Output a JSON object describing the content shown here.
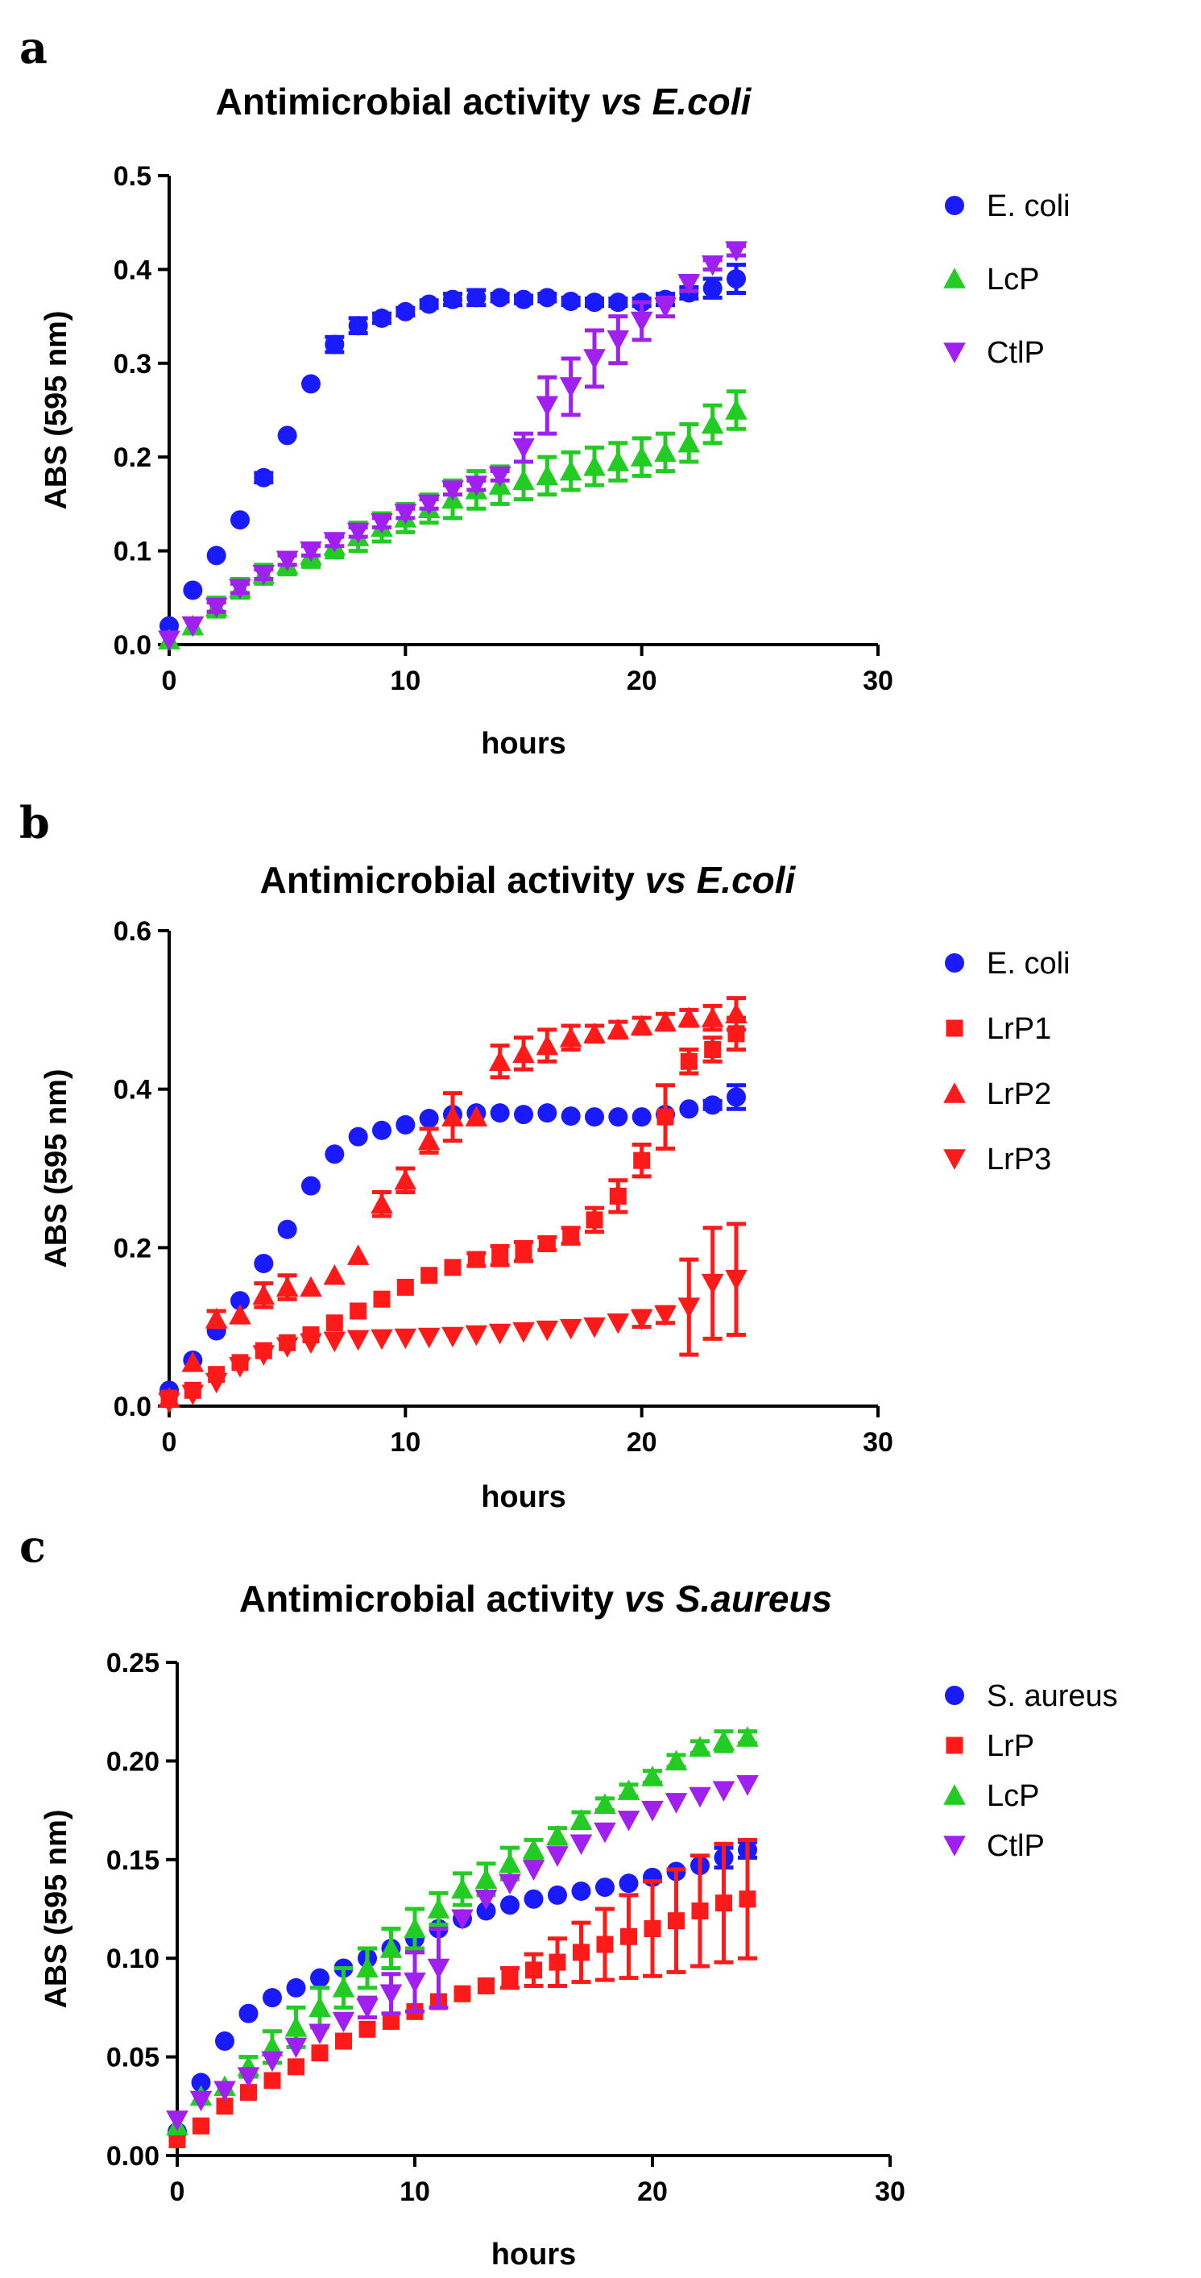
{
  "chart_data": [
    {
      "panel": "a",
      "type": "scatter",
      "title": "Antimicrobial activity ",
      "title_italic": "vs E.coli",
      "xlabel": "hours",
      "ylabel": "ABS (595 nm)",
      "xlim": [
        0,
        30
      ],
      "ylim": [
        0,
        0.5
      ],
      "xticks": [
        "0",
        "10",
        "20",
        "30"
      ],
      "yticks": [
        "0.0",
        "0.1",
        "0.2",
        "0.3",
        "0.4",
        "0.5"
      ],
      "legend_position": "right",
      "series": [
        {
          "name": "E. coli",
          "marker": "circle",
          "color": "#1a1aff",
          "x": [
            0,
            1,
            2,
            3,
            4,
            5,
            6,
            7,
            8,
            9,
            10,
            11,
            12,
            13,
            14,
            15,
            16,
            17,
            18,
            19,
            20,
            21,
            22,
            23,
            24
          ],
          "y": [
            0.02,
            0.058,
            0.095,
            0.133,
            0.178,
            0.223,
            0.278,
            0.32,
            0.34,
            0.348,
            0.355,
            0.363,
            0.368,
            0.37,
            0.37,
            0.368,
            0.37,
            0.366,
            0.365,
            0.365,
            0.365,
            0.368,
            0.375,
            0.38,
            0.39
          ],
          "err": [
            0,
            0,
            0,
            0,
            0.005,
            0,
            0,
            0.008,
            0.008,
            0.005,
            0.004,
            0.004,
            0.006,
            0.008,
            0.004,
            0.004,
            0.004,
            0.004,
            0.004,
            0.004,
            0.004,
            0.006,
            0.006,
            0.01,
            0.015
          ]
        },
        {
          "name": "LcP",
          "marker": "triangle-up",
          "color": "#22cc22",
          "x": [
            0,
            1,
            2,
            3,
            4,
            5,
            6,
            7,
            8,
            9,
            10,
            11,
            12,
            13,
            14,
            15,
            16,
            17,
            18,
            19,
            20,
            21,
            22,
            23,
            24
          ],
          "y": [
            0.005,
            0.02,
            0.04,
            0.06,
            0.075,
            0.085,
            0.095,
            0.105,
            0.115,
            0.125,
            0.135,
            0.145,
            0.155,
            0.165,
            0.17,
            0.175,
            0.18,
            0.185,
            0.19,
            0.195,
            0.2,
            0.205,
            0.215,
            0.235,
            0.25
          ],
          "err": [
            0,
            0,
            0.01,
            0.01,
            0.01,
            0.01,
            0.012,
            0.012,
            0.015,
            0.015,
            0.015,
            0.015,
            0.02,
            0.02,
            0.02,
            0.02,
            0.02,
            0.02,
            0.02,
            0.02,
            0.02,
            0.02,
            0.02,
            0.02,
            0.02
          ]
        },
        {
          "name": "CtlP",
          "marker": "triangle-down",
          "color": "#a020f0",
          "x": [
            0,
            1,
            2,
            3,
            4,
            5,
            6,
            7,
            8,
            9,
            10,
            11,
            12,
            13,
            14,
            15,
            16,
            17,
            18,
            19,
            20,
            21,
            22,
            23,
            24
          ],
          "y": [
            0.005,
            0.02,
            0.04,
            0.06,
            0.075,
            0.09,
            0.1,
            0.11,
            0.12,
            0.13,
            0.14,
            0.15,
            0.165,
            0.17,
            0.18,
            0.21,
            0.255,
            0.275,
            0.305,
            0.325,
            0.345,
            0.36,
            0.385,
            0.405,
            0.42
          ],
          "err": [
            0,
            0,
            0.005,
            0.005,
            0.005,
            0.005,
            0.005,
            0.005,
            0.005,
            0.005,
            0.005,
            0.005,
            0.005,
            0.005,
            0.005,
            0.015,
            0.03,
            0.03,
            0.03,
            0.025,
            0.02,
            0.01,
            0.008,
            0.005,
            0.005
          ]
        }
      ]
    },
    {
      "panel": "b",
      "type": "scatter",
      "title": "Antimicrobial activity ",
      "title_italic": "vs E.coli",
      "xlabel": "hours",
      "ylabel": "ABS (595 nm)",
      "xlim": [
        0,
        30
      ],
      "ylim": [
        0,
        0.6
      ],
      "xticks": [
        "0",
        "10",
        "20",
        "30"
      ],
      "yticks": [
        "0.0",
        "0.2",
        "0.4",
        "0.6"
      ],
      "legend_position": "right",
      "series": [
        {
          "name": "E. coli",
          "marker": "circle",
          "color": "#1a1aff",
          "x": [
            0,
            1,
            2,
            3,
            4,
            5,
            6,
            7,
            8,
            9,
            10,
            11,
            12,
            13,
            14,
            15,
            16,
            17,
            18,
            19,
            20,
            21,
            22,
            23,
            24
          ],
          "y": [
            0.02,
            0.058,
            0.095,
            0.133,
            0.18,
            0.223,
            0.278,
            0.318,
            0.34,
            0.348,
            0.355,
            0.363,
            0.368,
            0.37,
            0.37,
            0.368,
            0.37,
            0.366,
            0.365,
            0.365,
            0.365,
            0.368,
            0.375,
            0.38,
            0.39
          ],
          "err": [
            0,
            0,
            0,
            0,
            0,
            0,
            0,
            0,
            0,
            0,
            0,
            0,
            0,
            0,
            0,
            0,
            0,
            0,
            0,
            0,
            0,
            0,
            0,
            0.005,
            0.015
          ]
        },
        {
          "name": "LrP1",
          "marker": "square",
          "color": "#ff1a1a",
          "x": [
            0,
            1,
            2,
            3,
            4,
            5,
            6,
            7,
            8,
            9,
            10,
            11,
            12,
            13,
            14,
            15,
            16,
            17,
            18,
            19,
            20,
            21,
            22,
            23,
            24
          ],
          "y": [
            0.01,
            0.02,
            0.04,
            0.055,
            0.07,
            0.08,
            0.09,
            0.105,
            0.12,
            0.135,
            0.15,
            0.165,
            0.175,
            0.185,
            0.19,
            0.195,
            0.205,
            0.215,
            0.235,
            0.265,
            0.31,
            0.365,
            0.435,
            0.45,
            0.47
          ],
          "err": [
            0,
            0,
            0,
            0,
            0,
            0,
            0,
            0,
            0,
            0,
            0,
            0,
            0,
            0.008,
            0.012,
            0.012,
            0.008,
            0.01,
            0.015,
            0.02,
            0.02,
            0.04,
            0.015,
            0.015,
            0.02
          ]
        },
        {
          "name": "LrP2",
          "marker": "triangle-up",
          "color": "#ff1a1a",
          "x": [
            0,
            1,
            2,
            3,
            4,
            5,
            6,
            7,
            8,
            9,
            10,
            11,
            12,
            13,
            14,
            15,
            16,
            17,
            18,
            19,
            20,
            21,
            22,
            23,
            24
          ],
          "y": [
            0.01,
            0.055,
            0.11,
            0.115,
            0.14,
            0.15,
            0.15,
            0.165,
            0.19,
            0.255,
            0.285,
            0.335,
            0.365,
            0.365,
            0.435,
            0.445,
            0.455,
            0.465,
            0.47,
            0.475,
            0.48,
            0.485,
            0.49,
            0.49,
            0.495
          ],
          "err": [
            0,
            0,
            0.01,
            0,
            0.015,
            0.015,
            0,
            0,
            0,
            0.015,
            0.015,
            0.015,
            0.03,
            0,
            0.02,
            0.02,
            0.02,
            0.015,
            0.01,
            0.01,
            0.01,
            0.01,
            0.01,
            0.015,
            0.02
          ]
        },
        {
          "name": "LrP3",
          "marker": "triangle-down",
          "color": "#ff1a1a",
          "x": [
            0,
            1,
            2,
            3,
            4,
            5,
            6,
            7,
            8,
            9,
            10,
            11,
            12,
            13,
            14,
            15,
            16,
            17,
            18,
            19,
            20,
            21,
            22,
            23,
            24
          ],
          "y": [
            0.005,
            0.015,
            0.03,
            0.05,
            0.065,
            0.075,
            0.08,
            0.082,
            0.084,
            0.085,
            0.086,
            0.087,
            0.088,
            0.09,
            0.092,
            0.094,
            0.096,
            0.098,
            0.1,
            0.105,
            0.11,
            0.115,
            0.125,
            0.155,
            0.16
          ],
          "err": [
            0,
            0,
            0,
            0,
            0,
            0,
            0,
            0,
            0,
            0,
            0,
            0,
            0,
            0,
            0,
            0,
            0,
            0,
            0,
            0,
            0.01,
            0.01,
            0.06,
            0.07,
            0.07
          ]
        }
      ]
    },
    {
      "panel": "c",
      "type": "scatter",
      "title": "Antimicrobial activity ",
      "title_italic": "vs S.aureus",
      "xlabel": "hours",
      "ylabel": "ABS (595 nm)",
      "xlim": [
        0,
        30
      ],
      "ylim": [
        0,
        0.25
      ],
      "xticks": [
        "0",
        "10",
        "20",
        "30"
      ],
      "yticks": [
        "0.00",
        "0.05",
        "0.10",
        "0.15",
        "0.20",
        "0.25"
      ],
      "legend_position": "right",
      "series": [
        {
          "name": "S. aureus",
          "marker": "circle",
          "color": "#1a1aff",
          "x": [
            0,
            1,
            2,
            3,
            4,
            5,
            6,
            7,
            8,
            9,
            10,
            11,
            12,
            13,
            14,
            15,
            16,
            17,
            18,
            19,
            20,
            21,
            22,
            23,
            24
          ],
          "y": [
            0.012,
            0.037,
            0.058,
            0.072,
            0.08,
            0.085,
            0.09,
            0.095,
            0.1,
            0.105,
            0.11,
            0.115,
            0.12,
            0.124,
            0.127,
            0.13,
            0.132,
            0.134,
            0.136,
            0.138,
            0.141,
            0.144,
            0.147,
            0.151,
            0.155
          ],
          "err": [
            0,
            0,
            0,
            0,
            0,
            0,
            0,
            0,
            0,
            0,
            0,
            0,
            0,
            0,
            0,
            0,
            0,
            0,
            0,
            0,
            0,
            0,
            0,
            0.005,
            0.004
          ]
        },
        {
          "name": "LrP",
          "marker": "square",
          "color": "#ff1a1a",
          "x": [
            0,
            1,
            2,
            3,
            4,
            5,
            6,
            7,
            8,
            9,
            10,
            11,
            12,
            13,
            14,
            15,
            16,
            17,
            18,
            19,
            20,
            21,
            22,
            23,
            24
          ],
          "y": [
            0.008,
            0.015,
            0.025,
            0.032,
            0.038,
            0.045,
            0.052,
            0.058,
            0.064,
            0.068,
            0.073,
            0.078,
            0.082,
            0.086,
            0.09,
            0.094,
            0.098,
            0.103,
            0.107,
            0.111,
            0.115,
            0.119,
            0.124,
            0.128,
            0.13
          ],
          "err": [
            0,
            0,
            0,
            0,
            0,
            0,
            0,
            0,
            0,
            0,
            0,
            0,
            0,
            0,
            0.005,
            0.008,
            0.012,
            0.015,
            0.018,
            0.021,
            0.024,
            0.026,
            0.028,
            0.03,
            0.03
          ]
        },
        {
          "name": "LcP",
          "marker": "triangle-up",
          "color": "#22cc22",
          "x": [
            0,
            1,
            2,
            3,
            4,
            5,
            6,
            7,
            8,
            9,
            10,
            11,
            12,
            13,
            14,
            15,
            16,
            17,
            18,
            19,
            20,
            21,
            22,
            23,
            24
          ],
          "y": [
            0.015,
            0.03,
            0.035,
            0.045,
            0.055,
            0.065,
            0.075,
            0.085,
            0.095,
            0.105,
            0.115,
            0.125,
            0.135,
            0.14,
            0.148,
            0.155,
            0.162,
            0.17,
            0.178,
            0.185,
            0.192,
            0.2,
            0.207,
            0.21,
            0.212
          ],
          "err": [
            0,
            0,
            0,
            0.005,
            0.008,
            0.01,
            0.01,
            0.01,
            0.01,
            0.01,
            0.01,
            0.008,
            0.008,
            0.008,
            0.008,
            0.005,
            0.004,
            0.004,
            0.003,
            0.003,
            0.003,
            0.003,
            0.003,
            0.005,
            0.003
          ]
        },
        {
          "name": "CtlP",
          "marker": "triangle-down",
          "color": "#a020f0",
          "x": [
            0,
            1,
            2,
            3,
            4,
            5,
            6,
            7,
            8,
            9,
            10,
            11,
            12,
            13,
            14,
            15,
            16,
            17,
            18,
            19,
            20,
            21,
            22,
            23,
            24
          ],
          "y": [
            0.018,
            0.028,
            0.033,
            0.04,
            0.048,
            0.055,
            0.062,
            0.068,
            0.075,
            0.082,
            0.088,
            0.095,
            0.12,
            0.13,
            0.138,
            0.145,
            0.152,
            0.158,
            0.164,
            0.17,
            0.175,
            0.179,
            0.182,
            0.185,
            0.188
          ],
          "err": [
            0,
            0,
            0,
            0,
            0,
            0,
            0,
            0,
            0.005,
            0.01,
            0.015,
            0.02,
            0,
            0,
            0,
            0,
            0,
            0,
            0,
            0,
            0,
            0,
            0,
            0,
            0
          ]
        }
      ]
    }
  ]
}
